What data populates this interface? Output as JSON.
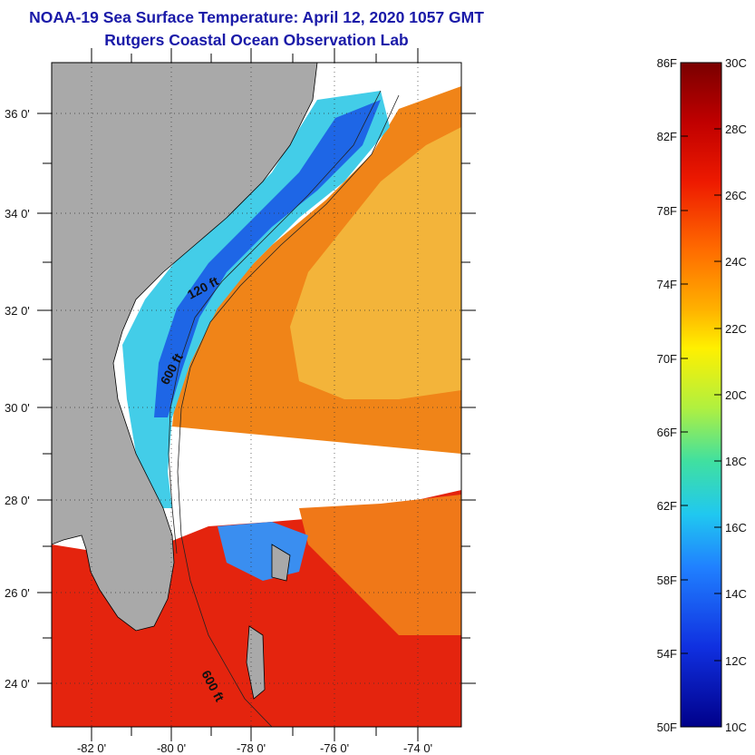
{
  "header": {
    "title": "NOAA-19 Sea Surface Temperature:  April 12, 2020 1057 GMT",
    "subtitle": "Rutgers Coastal Ocean Observation Lab"
  },
  "map": {
    "lat_labels": [
      "36 0'",
      "34 0'",
      "32 0'",
      "30 0'",
      "28 0'",
      "26 0'",
      "24 0'"
    ],
    "lon_labels": [
      "-82 0'",
      "-80 0'",
      "-78 0'",
      "-76 0'",
      "-74 0'"
    ],
    "contour_labels": [
      "120 ft",
      "600 ft",
      "600 ft"
    ],
    "colors": {
      "land": "#a9a9a9",
      "cloud": "#ffffff",
      "cold_shelf": "#1e6cf0",
      "mid_shelf": "#3fd0f0",
      "gulf_stream": "#f07a10",
      "warm_south": "#e8200c"
    }
  },
  "colorbar": {
    "fahrenheit_labels": [
      "86F",
      "82F",
      "78F",
      "74F",
      "70F",
      "66F",
      "62F",
      "58F",
      "54F",
      "50F"
    ],
    "celsius_labels": [
      "30C",
      "28C",
      "26C",
      "24C",
      "22C",
      "20C",
      "18C",
      "16C",
      "14C",
      "12C",
      "10C"
    ],
    "gradient": [
      "#7a0000",
      "#c00000",
      "#ee1a00",
      "#ff6a00",
      "#ffb000",
      "#fff000",
      "#b0f040",
      "#40e0a0",
      "#20c8f0",
      "#2080ff",
      "#1030e0",
      "#00008a"
    ]
  }
}
